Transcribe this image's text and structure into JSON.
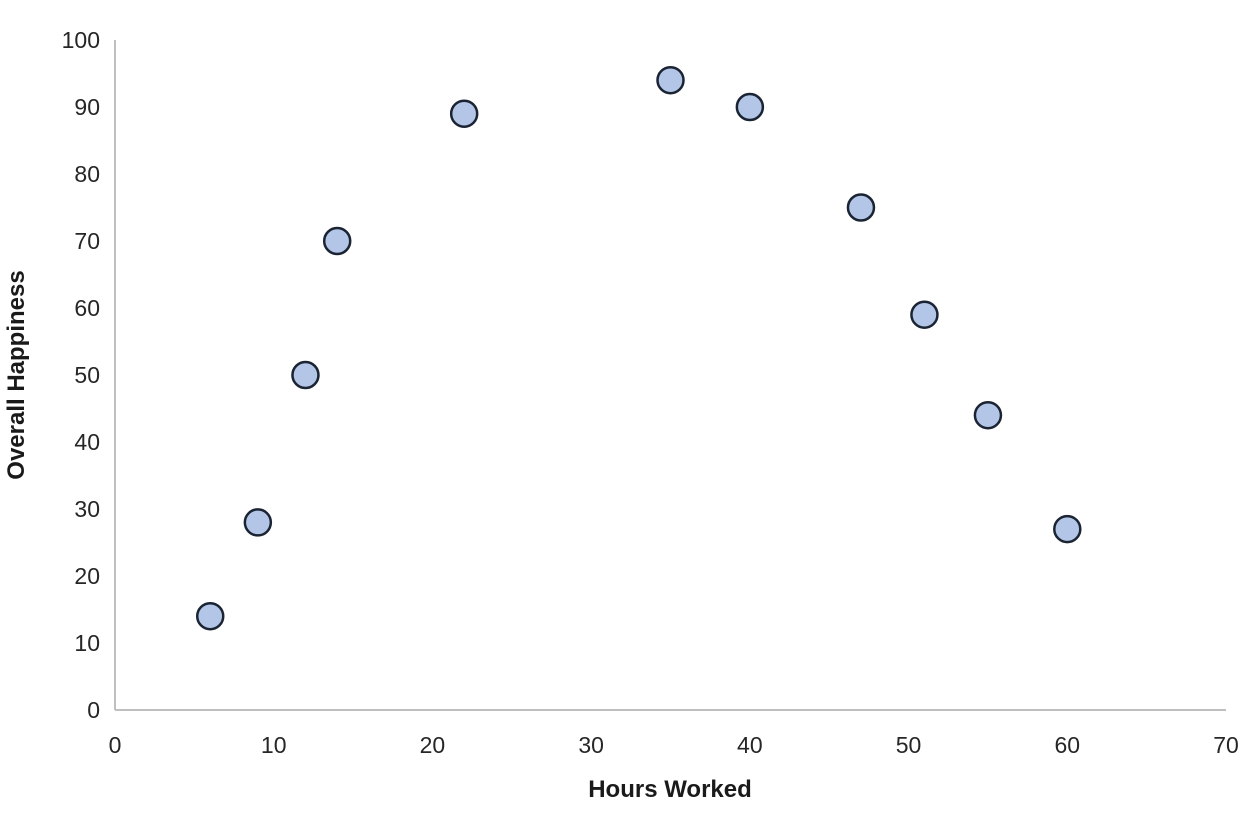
{
  "chart_data": {
    "type": "scatter",
    "title": "",
    "xlabel": "Hours Worked",
    "ylabel": "Overall Happiness",
    "points": [
      {
        "x": 6,
        "y": 14
      },
      {
        "x": 9,
        "y": 28
      },
      {
        "x": 12,
        "y": 50
      },
      {
        "x": 14,
        "y": 70
      },
      {
        "x": 22,
        "y": 89
      },
      {
        "x": 35,
        "y": 94
      },
      {
        "x": 40,
        "y": 90
      },
      {
        "x": 47,
        "y": 75
      },
      {
        "x": 51,
        "y": 59
      },
      {
        "x": 55,
        "y": 44
      },
      {
        "x": 60,
        "y": 27
      }
    ],
    "xlim": [
      0,
      70
    ],
    "ylim": [
      0,
      100
    ],
    "x_ticks": [
      0,
      10,
      20,
      30,
      40,
      50,
      60,
      70
    ],
    "y_ticks": [
      0,
      10,
      20,
      30,
      40,
      50,
      60,
      70,
      80,
      90,
      100
    ],
    "grid": "off",
    "legend": "none",
    "colors": {
      "background": "#ffffff",
      "axis_line": "#bfbfbf",
      "tick_text": "#262626",
      "title_text": "#1a1a1a",
      "marker_fill": "#b4c6e7",
      "marker_stroke": "#1a2433"
    }
  }
}
